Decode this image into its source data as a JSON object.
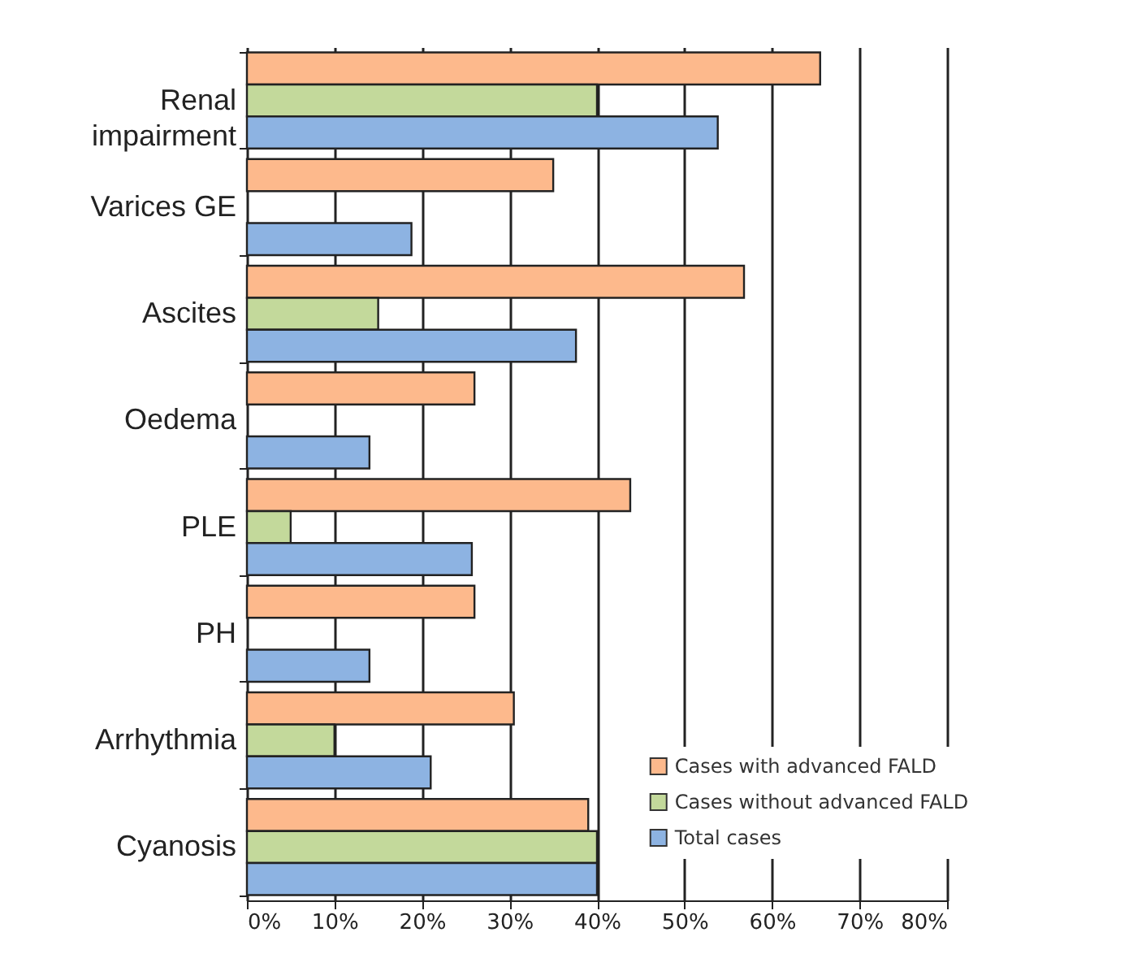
{
  "chart_data": {
    "type": "bar",
    "orientation": "horizontal",
    "categories": [
      "Renal impairment",
      "Varices GE",
      "Ascites",
      "Oedema",
      "PLE",
      "PH",
      "Arrhythmia",
      "Cyanosis"
    ],
    "series": [
      {
        "name": "Cases with advanced FALD",
        "color": "#fdb98c",
        "values": [
          65.5,
          35,
          56.8,
          26,
          43.8,
          26,
          30.5,
          39
        ]
      },
      {
        "name": "Cases without advanced FALD",
        "color": "#c3d99b",
        "values": [
          40,
          null,
          15,
          null,
          5,
          null,
          10,
          40
        ]
      },
      {
        "name": "Total cases",
        "color": "#8db3e2",
        "values": [
          53.8,
          18.8,
          37.6,
          14,
          25.7,
          14,
          21,
          40
        ]
      }
    ],
    "xlim": [
      0,
      80
    ],
    "xticks": [
      {
        "value": 0,
        "label": "0%"
      },
      {
        "value": 10,
        "label": "10%"
      },
      {
        "value": 20,
        "label": "20%"
      },
      {
        "value": 30,
        "label": "30%"
      },
      {
        "value": 40,
        "label": "40%"
      },
      {
        "value": 50,
        "label": "50%"
      },
      {
        "value": 60,
        "label": "60%"
      },
      {
        "value": 70,
        "label": "70%"
      },
      {
        "value": 80,
        "label": "80%"
      }
    ],
    "grid": "x",
    "legend": "bottom right"
  }
}
